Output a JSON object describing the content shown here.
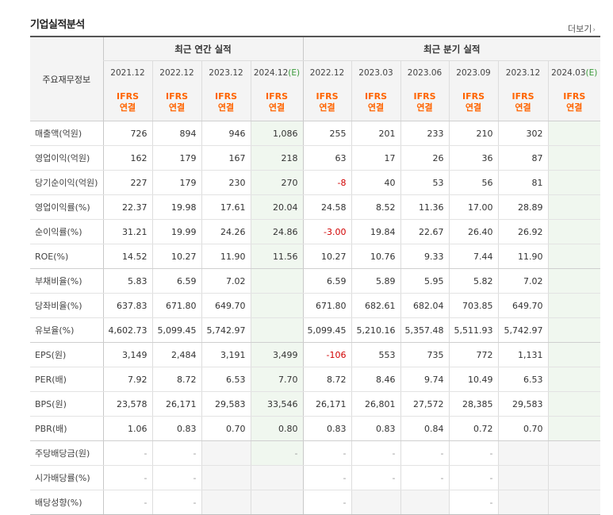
{
  "section": {
    "title": "기업실적분석",
    "more_label": "더보기",
    "more_arrow": "›"
  },
  "header": {
    "row_label": "주요재무정보",
    "annual_label": "최근 연간 실적",
    "quarter_label": "최근 분기 실적",
    "annual_periods": [
      {
        "date": "2021.12",
        "est": ""
      },
      {
        "date": "2022.12",
        "est": ""
      },
      {
        "date": "2023.12",
        "est": ""
      },
      {
        "date": "2024.12",
        "est": "(E)"
      }
    ],
    "quarter_periods": [
      {
        "date": "2022.12",
        "est": ""
      },
      {
        "date": "2023.03",
        "est": ""
      },
      {
        "date": "2023.06",
        "est": ""
      },
      {
        "date": "2023.09",
        "est": ""
      },
      {
        "date": "2023.12",
        "est": ""
      },
      {
        "date": "2024.03",
        "est": "(E)"
      }
    ],
    "ifrs_line1": "IFRS",
    "ifrs_line2": "연결"
  },
  "rows": [
    {
      "label": "매출액(억원)",
      "values": [
        "726",
        "894",
        "946",
        "1,086",
        "255",
        "201",
        "233",
        "210",
        "302",
        ""
      ]
    },
    {
      "label": "영업이익(억원)",
      "values": [
        "162",
        "179",
        "167",
        "218",
        "63",
        "17",
        "26",
        "36",
        "87",
        ""
      ]
    },
    {
      "label": "당기순이익(억원)",
      "values": [
        "227",
        "179",
        "230",
        "270",
        "-8",
        "40",
        "53",
        "56",
        "81",
        ""
      ]
    },
    {
      "label": "영업이익률(%)",
      "values": [
        "22.37",
        "19.98",
        "17.61",
        "20.04",
        "24.58",
        "8.52",
        "11.36",
        "17.00",
        "28.89",
        ""
      ]
    },
    {
      "label": "순이익률(%)",
      "values": [
        "31.21",
        "19.99",
        "24.26",
        "24.86",
        "-3.00",
        "19.84",
        "22.67",
        "26.40",
        "26.92",
        ""
      ]
    },
    {
      "label": "ROE(%)",
      "values": [
        "14.52",
        "10.27",
        "11.90",
        "11.56",
        "10.27",
        "10.76",
        "9.33",
        "7.44",
        "11.90",
        ""
      ]
    },
    {
      "label": "부채비율(%)",
      "values": [
        "5.83",
        "6.59",
        "7.02",
        "",
        "6.59",
        "5.89",
        "5.95",
        "5.82",
        "7.02",
        ""
      ]
    },
    {
      "label": "당좌비율(%)",
      "values": [
        "637.83",
        "671.80",
        "649.70",
        "",
        "671.80",
        "682.61",
        "682.04",
        "703.85",
        "649.70",
        ""
      ]
    },
    {
      "label": "유보율(%)",
      "values": [
        "4,602.73",
        "5,099.45",
        "5,742.97",
        "",
        "5,099.45",
        "5,210.16",
        "5,357.48",
        "5,511.93",
        "5,742.97",
        ""
      ]
    },
    {
      "label": "EPS(원)",
      "values": [
        "3,149",
        "2,484",
        "3,191",
        "3,499",
        "-106",
        "553",
        "735",
        "772",
        "1,131",
        ""
      ]
    },
    {
      "label": "PER(배)",
      "values": [
        "7.92",
        "8.72",
        "6.53",
        "7.70",
        "8.72",
        "8.46",
        "9.74",
        "10.49",
        "6.53",
        ""
      ]
    },
    {
      "label": "BPS(원)",
      "values": [
        "23,578",
        "26,171",
        "29,583",
        "33,546",
        "26,171",
        "26,801",
        "27,572",
        "28,385",
        "29,583",
        ""
      ]
    },
    {
      "label": "PBR(배)",
      "values": [
        "1.06",
        "0.83",
        "0.70",
        "0.80",
        "0.83",
        "0.83",
        "0.84",
        "0.72",
        "0.70",
        ""
      ]
    },
    {
      "label": "주당배당금(원)",
      "values": [
        "-",
        "-",
        "",
        "-",
        "-",
        "-",
        "-",
        "-",
        "",
        ""
      ]
    },
    {
      "label": "시가배당률(%)",
      "values": [
        "-",
        "-",
        "",
        "",
        "-",
        "-",
        "-",
        "-",
        "",
        ""
      ]
    },
    {
      "label": "배당성향(%)",
      "values": [
        "-",
        "-",
        "",
        "",
        "-",
        "",
        "",
        "-",
        "",
        ""
      ]
    }
  ]
}
